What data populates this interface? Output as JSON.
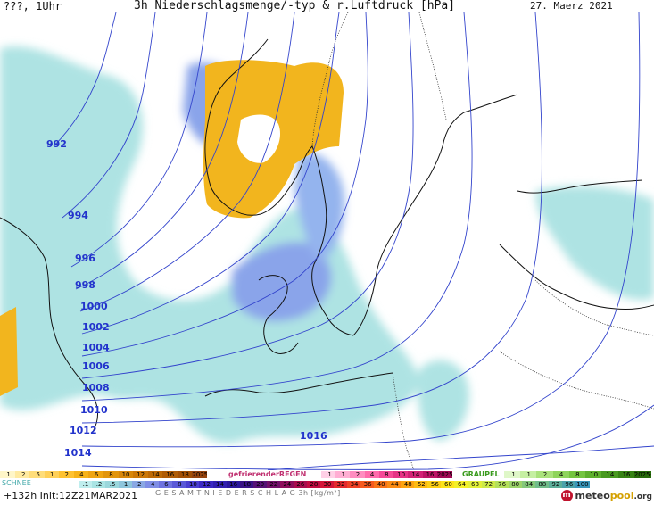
{
  "header": {
    "left": "???, 1Uhr",
    "title": "3h Niederschlagsmenge/-typ & r.Luftdruck [hPa]",
    "date": "27. Maerz 2021"
  },
  "isobars": [
    "992",
    "994",
    "996",
    "998",
    "1000",
    "1002",
    "1004",
    "1006",
    "1008",
    "1010",
    "1012",
    "1014",
    "1016"
  ],
  "legend": {
    "snow": {
      "label": "SCHNEE",
      "values": [
        ".1",
        ".2",
        ".5",
        "1",
        "2",
        "4",
        "6",
        "8",
        "10",
        "12",
        "14",
        "16",
        "18",
        "2025+"
      ],
      "colors": [
        "#fff6c8",
        "#ffeaa0",
        "#ffdd7a",
        "#ffd058",
        "#ffc230",
        "#f7b318",
        "#efa410",
        "#e2950c",
        "#d8870a",
        "#cc7808",
        "#be6a06",
        "#b05c05",
        "#a24f04",
        "#94430e"
      ]
    },
    "freezing_rain": {
      "label": "gefrierenderREGEN",
      "values": [
        ".1",
        "1",
        "2",
        "4",
        "8",
        "10",
        "14",
        "16",
        "2025+"
      ],
      "colors": [
        "#ffd0e6",
        "#ffaed3",
        "#ff8cc0",
        "#ff6aab",
        "#f54997",
        "#e63386",
        "#d22276",
        "#bd1466",
        "#a30a56"
      ]
    },
    "graupel": {
      "label": "GRAUPEL",
      "values": [
        ".1",
        "1",
        "2",
        "4",
        "8",
        "10",
        "14",
        "16",
        "2025+"
      ],
      "colors": [
        "#dff7c8",
        "#c5efa2",
        "#a9e27b",
        "#8ed45b",
        "#74c53f",
        "#5db02c",
        "#489a1f",
        "#368313",
        "#276b0b"
      ]
    },
    "total": {
      "label": "G E S A M T N I E D E R S C H L A G   3h  [kg/m²]",
      "values": [
        ".1",
        ".2",
        ".5",
        "1",
        "2",
        "4",
        "6",
        "8",
        "10",
        "12",
        "14",
        "16",
        "18",
        "20",
        "22",
        "24",
        "26",
        "28",
        "30",
        "32",
        "34",
        "36",
        "40",
        "44",
        "48",
        "52",
        "56",
        "60",
        "64",
        "68",
        "72",
        "76",
        "80",
        "84",
        "88",
        "92",
        "96",
        "100"
      ],
      "colors": [
        "#bfeeee",
        "#a8e4e4",
        "#9ad7dc",
        "#8fc6dc",
        "#8aa8e4",
        "#7f8ee6",
        "#6e72e0",
        "#5a58d8",
        "#4a3fd0",
        "#3c29c4",
        "#3220b0",
        "#2a189c",
        "#3a1486",
        "#561276",
        "#72106a",
        "#8e0e5c",
        "#aa0c4e",
        "#c20c42",
        "#d41638",
        "#e42a2e",
        "#ef4126",
        "#f55a1e",
        "#f97418",
        "#fb8c14",
        "#fca412",
        "#fdbb12",
        "#fdd014",
        "#fce41c",
        "#f4f028",
        "#e2f03a",
        "#ccea4a",
        "#b4e05a",
        "#9cd46a",
        "#84c87a",
        "#70bc8a",
        "#5caf9a",
        "#4aa2aa",
        "#3a96ba"
      ]
    }
  },
  "footer": {
    "run": "+132h  Init:12Z21MAR2021",
    "brand_pre": "meteo",
    "brand_post": "pool",
    "brand_suffix": ".org"
  },
  "colors": {
    "isobar": "#3344cc",
    "land_line": "#111111",
    "snow_area": "#f2b51e",
    "rain_light": "#aee3e3",
    "rain_mid": "#8aa4ea"
  }
}
